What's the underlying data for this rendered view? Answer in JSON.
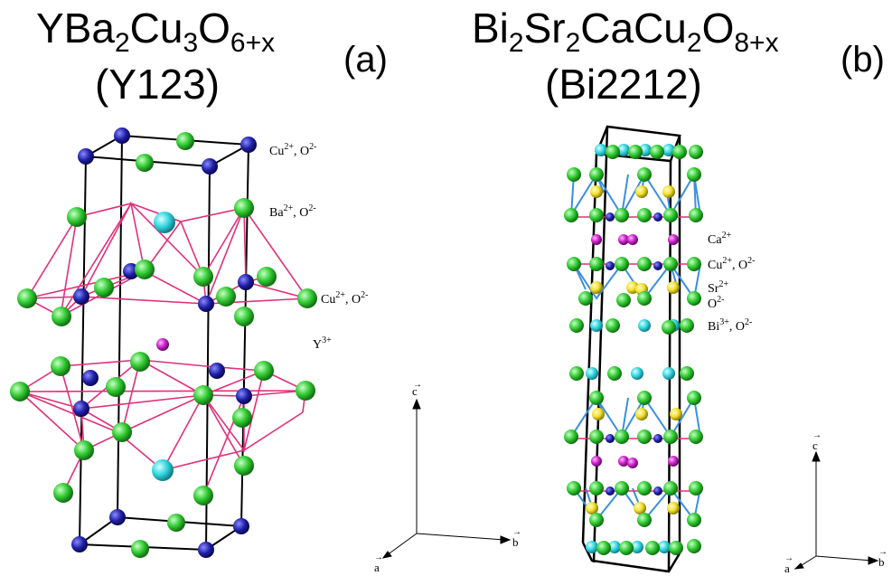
{
  "panel_a": {
    "formula": {
      "base1": "YBa",
      "sub1": "2",
      "base2": "Cu",
      "sub2": "3",
      "base3": "O",
      "sub3": "6+x"
    },
    "short_name": "(Y123)",
    "tag": "(a)",
    "layers": [
      {
        "ion": "Cu",
        "charge": "2+",
        "sep": ", ",
        "ion2": "O",
        "charge2": "2-"
      },
      {
        "ion": "Ba",
        "charge": "2+",
        "sep": ", ",
        "ion2": "O",
        "charge2": "2-"
      },
      {
        "ion": "Cu",
        "charge": "2+",
        "sep": ", ",
        "ion2": "O",
        "charge2": "2-"
      },
      {
        "ion": "Y",
        "charge": "3+",
        "sep": "",
        "ion2": "",
        "charge2": ""
      }
    ],
    "axes": {
      "c": "c",
      "a": "a",
      "b": "b"
    }
  },
  "panel_b": {
    "formula": {
      "base1": "Bi",
      "sub1": "2",
      "base2": "Sr",
      "sub2": "2",
      "base3": "CaCu",
      "sub3": "2",
      "base4": "O",
      "sub4": "8+x"
    },
    "short_name": "(Bi2212)",
    "tag": "(b)",
    "layers": [
      {
        "ion": "Ca",
        "charge": "2+",
        "sep": "",
        "ion2": "",
        "charge2": ""
      },
      {
        "ion": "Cu",
        "charge": "2+",
        "sep": ", ",
        "ion2": "O",
        "charge2": "2-"
      },
      {
        "ion": "Sr",
        "charge": "2+",
        "sep": "",
        "ion2": "",
        "charge2": ""
      },
      {
        "ion": "O",
        "charge": "2-",
        "sep": "",
        "ion2": "",
        "charge2": ""
      },
      {
        "ion": "Bi",
        "charge": "3+",
        "sep": ", ",
        "ion2": "O",
        "charge2": "2-"
      }
    ],
    "axes": {
      "c": "c",
      "a": "a",
      "b": "b"
    }
  },
  "colors": {
    "copper": "#1f1fa6",
    "oxygen": "#33cc33",
    "barium_strontium_bismuth": "#33d6e0",
    "yttrium_calcium": "#cc22cc",
    "strontium_yellow": "#f2e12a",
    "bond_pink": "#e0307a",
    "bond_blue": "#3a8fe0"
  }
}
